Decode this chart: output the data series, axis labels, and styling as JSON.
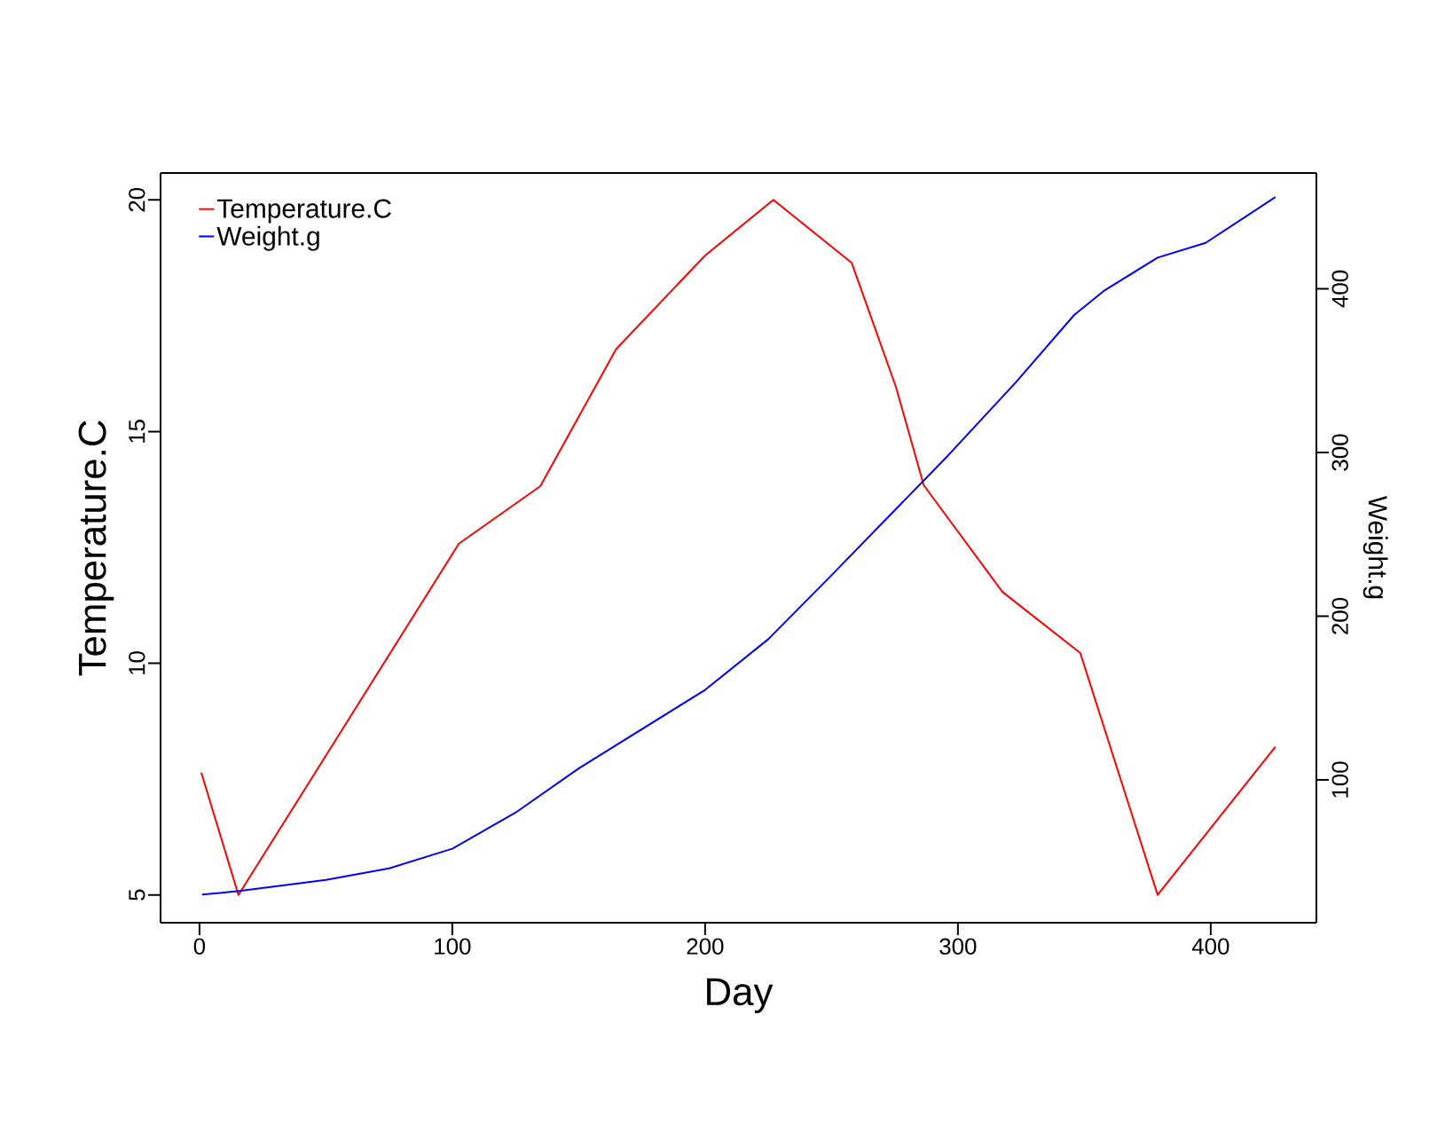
{
  "chart_data": {
    "type": "line",
    "xlabel": "Day",
    "ylabel": "Temperature.C",
    "y2label": "Weight.g",
    "xlim": [
      -15.4,
      441.8
    ],
    "ylim": [
      4.4,
      20.58
    ],
    "y2lim": [
      12.8,
      470.7
    ],
    "xticks": [
      0,
      100,
      200,
      300,
      400
    ],
    "yticks": [
      5,
      10,
      15,
      20
    ],
    "y2ticks": [
      100,
      200,
      300,
      400
    ],
    "legend": "top left",
    "series": [
      {
        "name": "Temperature.C",
        "color": "#ff0000",
        "x": [
          0.7,
          15.4,
          102.6,
          134.8,
          164.8,
          200,
          227,
          258,
          275.5,
          286.5,
          317.6,
          348.4,
          379,
          425.6
        ],
        "values": [
          7.64,
          5.0,
          12.58,
          13.82,
          16.78,
          18.8,
          20.0,
          18.64,
          15.96,
          13.84,
          11.54,
          10.22,
          5.0,
          8.2
        ]
      },
      {
        "name": "Weight.g",
        "color": "#0000ff",
        "axis": "y2",
        "x": [
          1,
          15,
          50,
          75,
          100,
          125,
          150,
          200,
          225,
          250,
          296,
          323,
          346,
          358,
          379,
          398,
          425.6
        ],
        "values": [
          30,
          32,
          39,
          46,
          58,
          80,
          107,
          155,
          186,
          225,
          298,
          343,
          384,
          399,
          419,
          428,
          456
        ]
      }
    ]
  }
}
